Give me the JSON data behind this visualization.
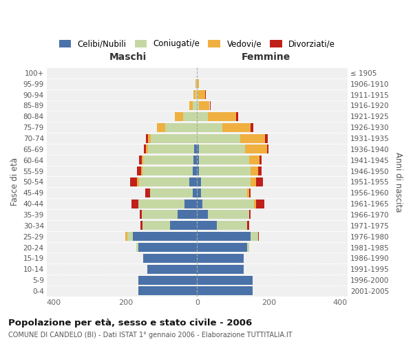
{
  "age_groups": [
    "0-4",
    "5-9",
    "10-14",
    "15-19",
    "20-24",
    "25-29",
    "30-34",
    "35-39",
    "40-44",
    "45-49",
    "50-54",
    "55-59",
    "60-64",
    "65-69",
    "70-74",
    "75-79",
    "80-84",
    "85-89",
    "90-94",
    "95-99",
    "100+"
  ],
  "birth_years": [
    "2001-2005",
    "1996-2000",
    "1991-1995",
    "1986-1990",
    "1981-1985",
    "1976-1980",
    "1971-1975",
    "1966-1970",
    "1961-1965",
    "1956-1960",
    "1951-1955",
    "1946-1950",
    "1941-1945",
    "1936-1940",
    "1931-1935",
    "1926-1930",
    "1921-1925",
    "1916-1920",
    "1911-1915",
    "1906-1910",
    "≤ 1905"
  ],
  "maschi_celibi": [
    165,
    165,
    140,
    150,
    165,
    180,
    75,
    55,
    35,
    12,
    22,
    12,
    10,
    8,
    0,
    0,
    0,
    0,
    0,
    1,
    0
  ],
  "maschi_coniugati": [
    0,
    0,
    0,
    0,
    5,
    15,
    78,
    100,
    130,
    120,
    140,
    140,
    140,
    130,
    130,
    90,
    40,
    12,
    5,
    2,
    0
  ],
  "maschi_vedovi": [
    0,
    0,
    0,
    0,
    0,
    5,
    0,
    0,
    0,
    0,
    5,
    5,
    5,
    5,
    8,
    22,
    22,
    10,
    5,
    2,
    0
  ],
  "maschi_divorziati": [
    0,
    0,
    0,
    0,
    0,
    0,
    5,
    5,
    18,
    12,
    20,
    10,
    8,
    5,
    5,
    0,
    0,
    0,
    0,
    0,
    0
  ],
  "femmine_nubili": [
    155,
    155,
    130,
    130,
    140,
    150,
    55,
    30,
    15,
    10,
    10,
    5,
    5,
    5,
    0,
    0,
    0,
    0,
    0,
    0,
    0
  ],
  "femmine_coniugate": [
    0,
    0,
    0,
    0,
    5,
    20,
    85,
    115,
    145,
    130,
    140,
    145,
    140,
    130,
    120,
    70,
    30,
    5,
    2,
    0,
    0
  ],
  "femmine_vedove": [
    0,
    0,
    0,
    0,
    0,
    0,
    0,
    0,
    5,
    5,
    15,
    20,
    30,
    60,
    70,
    80,
    80,
    30,
    20,
    5,
    0
  ],
  "femmine_divorziate": [
    0,
    0,
    0,
    0,
    0,
    2,
    5,
    5,
    22,
    5,
    20,
    10,
    5,
    5,
    8,
    8,
    5,
    2,
    2,
    0,
    0
  ],
  "color_celibi": "#4a72a8",
  "color_coniugati": "#c5d8a4",
  "color_vedovi": "#f0b040",
  "color_divorziati": "#c0201a",
  "xlim": 420,
  "bg_color": "#f0f0f0",
  "fig_bg": "#ffffff",
  "title": "Popolazione per età, sesso e stato civile - 2006",
  "subtitle": "COMUNE DI CANDELO (BI) - Dati ISTAT 1° gennaio 2006 - Elaborazione TUTTITALIA.IT",
  "legend_labels": [
    "Celibi/Nubili",
    "Coniugati/e",
    "Vedovi/e",
    "Divorziati/e"
  ],
  "label_maschi": "Maschi",
  "label_femmine": "Femmine",
  "label_fasce": "Fasce di età",
  "label_anni": "Anni di nascita"
}
